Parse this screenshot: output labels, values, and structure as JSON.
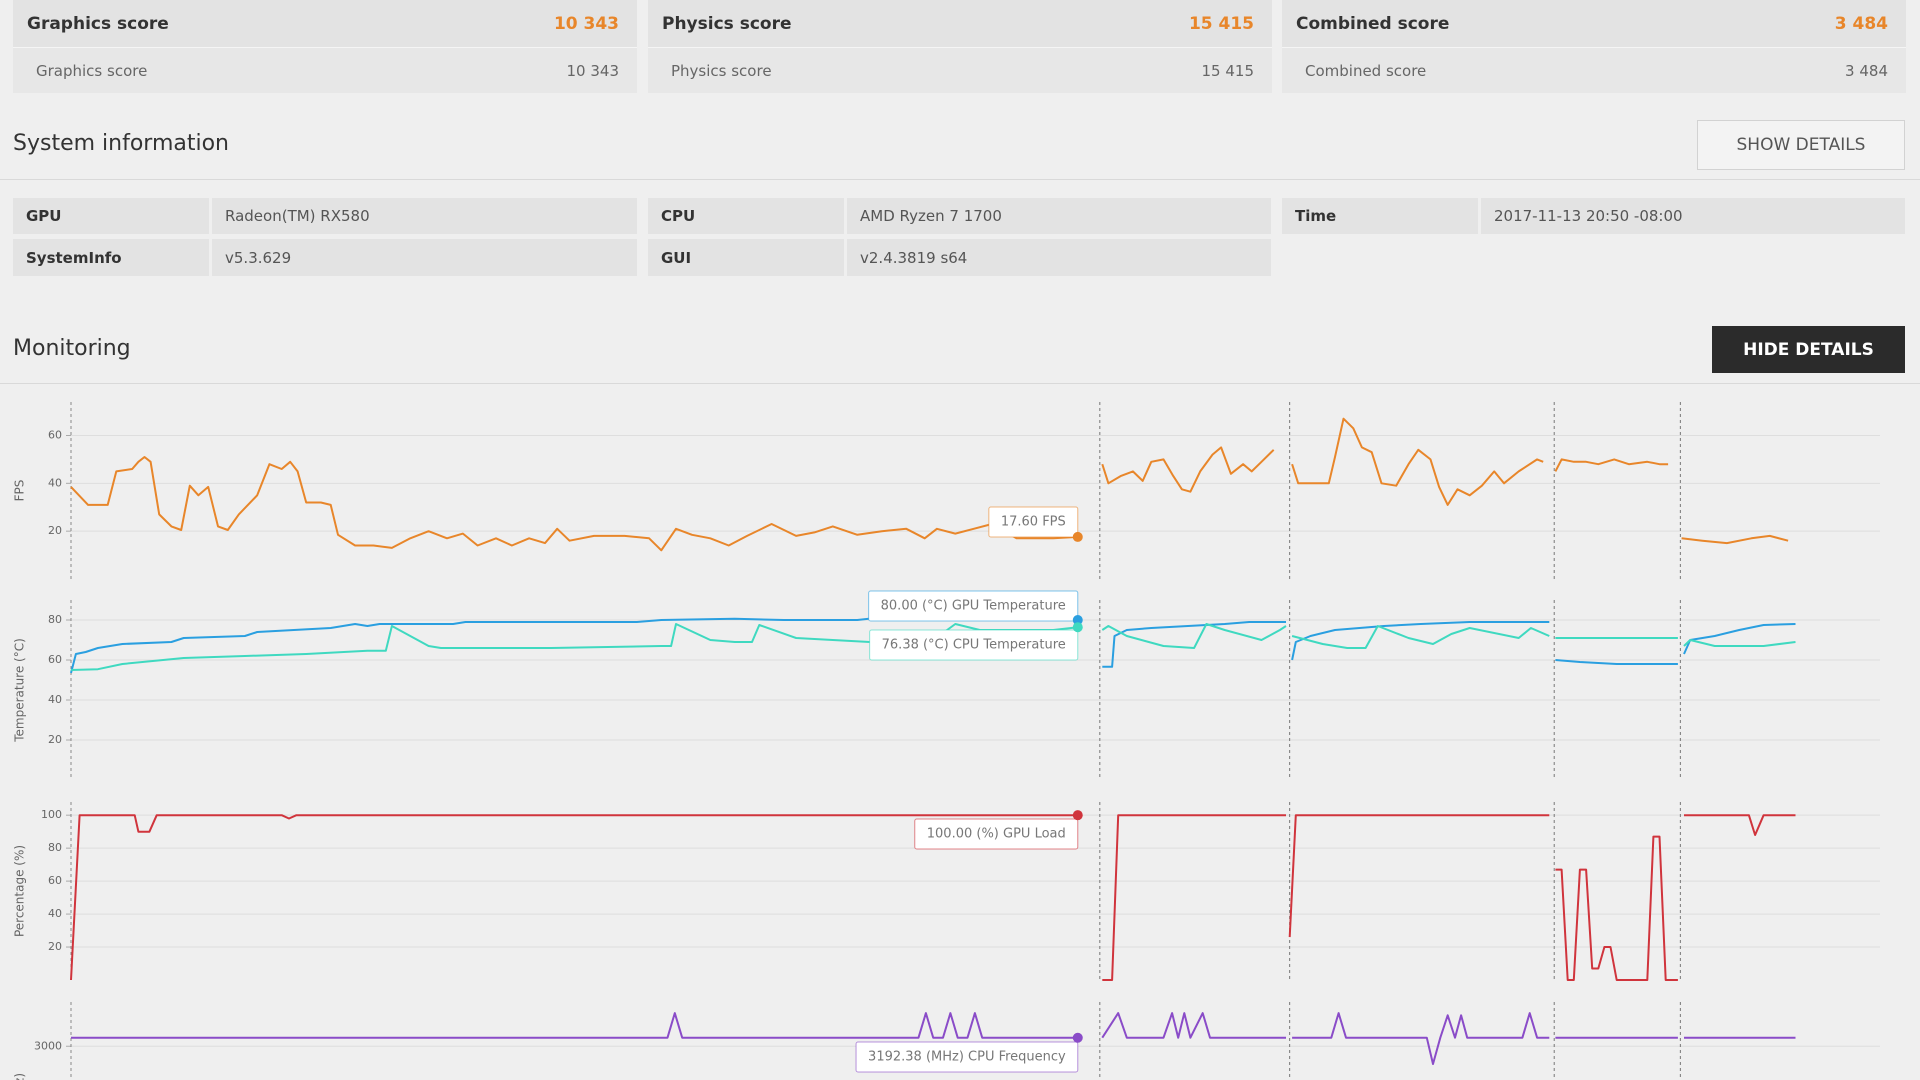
{
  "scores": [
    {
      "title": "Graphics score",
      "value": "10 343",
      "detail_label": "Graphics score",
      "detail_value": "10 343"
    },
    {
      "title": "Physics score",
      "value": "15 415",
      "detail_label": "Physics score",
      "detail_value": "15 415"
    },
    {
      "title": "Combined score",
      "value": "3 484",
      "detail_label": "Combined score",
      "detail_value": "3 484"
    }
  ],
  "system_information": {
    "title": "System information",
    "button": "SHOW DETAILS",
    "items": [
      {
        "label": "GPU",
        "value": "Radeon(TM) RX580"
      },
      {
        "label": "CPU",
        "value": "AMD Ryzen 7 1700"
      },
      {
        "label": "Time",
        "value": "2017-11-13 20:50 -08:00"
      },
      {
        "label": "SystemInfo",
        "value": "v5.3.629"
      },
      {
        "label": "GUI",
        "value": "v2.4.3819 s64"
      }
    ]
  },
  "monitoring": {
    "title": "Monitoring",
    "button": "HIDE DETAILS"
  },
  "chart_data": [
    {
      "type": "line",
      "y_label": "FPS",
      "xlim": [
        0,
        1477
      ],
      "ylim": [
        0,
        74
      ],
      "yticks": [
        20,
        40,
        60
      ],
      "grid": true,
      "dividers": [
        840,
        995,
        1211,
        1314
      ],
      "series": [
        {
          "color": "#e8862a",
          "tooltip": "17.60 FPS",
          "x": [
            0,
            14,
            30,
            37,
            50,
            55,
            60,
            65,
            72,
            82,
            90,
            97,
            104,
            112,
            120,
            128,
            137,
            152,
            162,
            172,
            179,
            185,
            192,
            204,
            212,
            218,
            232,
            247,
            262,
            277,
            292,
            307,
            320,
            332,
            347,
            360,
            374,
            387,
            397,
            407,
            427,
            452,
            472,
            482,
            494,
            507,
            522,
            537,
            552,
            572,
            592,
            607,
            622,
            642,
            662,
            682,
            697,
            707,
            722,
            737,
            752,
            772,
            802,
            822,
            null,
            842,
            847,
            857,
            867,
            875,
            882,
            892,
            900,
            907,
            914,
            922,
            932,
            939,
            947,
            957,
            964,
            972,
            982,
            null,
            997,
            1002,
            1012,
            1027,
            1032,
            1039,
            1047,
            1054,
            1062,
            1070,
            1082,
            1092,
            1100,
            1110,
            1117,
            1124,
            1132,
            1142,
            1152,
            1162,
            1170,
            1182,
            1197,
            1202,
            null,
            1212,
            1217,
            1227,
            1237,
            1247,
            1260,
            1272,
            1287,
            1297,
            1304,
            null,
            1315,
            1332,
            1352,
            1372,
            1387,
            1402
          ],
          "values": [
            38.5,
            31,
            31,
            45,
            46,
            49,
            51,
            49,
            27,
            22,
            20.5,
            39,
            35,
            38.5,
            22,
            20.5,
            27,
            35,
            48,
            46,
            49,
            45,
            32,
            32,
            31,
            18.5,
            14,
            14,
            13,
            17,
            20,
            17,
            19,
            14,
            17,
            14,
            17,
            15,
            21,
            16,
            18,
            18,
            17,
            12,
            21,
            18.5,
            17,
            14,
            18,
            23,
            18,
            19.5,
            22,
            18.5,
            20,
            21,
            17,
            21,
            19,
            21,
            23,
            17,
            17,
            17.6,
            null,
            48,
            40,
            43,
            45,
            41,
            49,
            50,
            43,
            37.5,
            36.5,
            45,
            52,
            55,
            44,
            48,
            45,
            49,
            54,
            null,
            48,
            40,
            40,
            40,
            51,
            67,
            63,
            55,
            53,
            40,
            39,
            48,
            54,
            50,
            38.5,
            31,
            37.5,
            35,
            39,
            45,
            40,
            45,
            50,
            49,
            null,
            45,
            50,
            49,
            49,
            48,
            50,
            48,
            49,
            48,
            48,
            null,
            17,
            16,
            15,
            17,
            18,
            16
          ]
        }
      ]
    },
    {
      "type": "line",
      "y_label": "Temperature (°C)",
      "xlim": [
        0,
        1477
      ],
      "ylim": [
        0,
        90
      ],
      "yticks": [
        20,
        40,
        60,
        80
      ],
      "grid": true,
      "dividers": [
        840,
        995,
        1211,
        1314
      ],
      "series": [
        {
          "color": "#2a9fe0",
          "tooltip": "80.00 (°C) GPU Temperature",
          "x": [
            0,
            4,
            12,
            22,
            42,
            82,
            92,
            142,
            152,
            182,
            212,
            222,
            232,
            242,
            252,
            312,
            322,
            362,
            442,
            462,
            482,
            542,
            582,
            642,
            657,
            822,
            null,
            842,
            850,
            852,
            862,
            882,
            912,
            942,
            962,
            992,
            null,
            997,
            1000,
            1012,
            1032,
            1072,
            1102,
            1142,
            1172,
            1207,
            null,
            1212,
            1232,
            1262,
            1312,
            null,
            1317,
            1322,
            1342,
            1362,
            1382,
            1408
          ],
          "values": [
            53.5,
            63,
            64,
            66,
            68,
            69,
            71,
            72,
            74,
            75,
            76,
            77,
            78,
            77,
            78,
            78,
            79,
            79,
            79,
            79,
            80,
            80.6,
            80,
            80,
            81,
            80,
            null,
            56.6,
            56.6,
            72,
            75,
            76,
            77,
            78,
            79,
            79,
            null,
            60,
            69,
            72,
            75,
            77,
            78,
            79,
            79,
            79,
            null,
            60,
            59,
            58,
            58,
            null,
            63,
            70,
            72,
            75,
            77.5,
            78
          ]
        },
        {
          "color": "#3fd9c0",
          "tooltip": "76.38 (°C) CPU Temperature",
          "x": [
            0,
            22,
            42,
            92,
            142,
            192,
            242,
            257,
            262,
            292,
            302,
            392,
            482,
            490,
            494,
            522,
            542,
            556,
            562,
            592,
            622,
            652,
            702,
            722,
            742,
            802,
            822,
            null,
            842,
            847,
            862,
            892,
            917,
            927,
            942,
            972,
            987,
            992,
            null,
            997,
            1022,
            1042,
            1057,
            1067,
            1092,
            1112,
            1127,
            1142,
            1182,
            1192,
            1207,
            null,
            1212,
            1312,
            null,
            1317,
            1322,
            1342,
            1382,
            1408
          ],
          "values": [
            55,
            55.4,
            58,
            61,
            62,
            63,
            64.6,
            64.6,
            77,
            67,
            66,
            66,
            67,
            67,
            78,
            70,
            69,
            69,
            77.5,
            71,
            70,
            69,
            69,
            78,
            75,
            75,
            76.4,
            null,
            75,
            77,
            72,
            67,
            66,
            78,
            75,
            70,
            75,
            77,
            null,
            72,
            68,
            66,
            66,
            77,
            71,
            68,
            73,
            76,
            71,
            76,
            72,
            null,
            71,
            71,
            null,
            67,
            70,
            67,
            67,
            69
          ]
        }
      ]
    },
    {
      "type": "line",
      "y_label": "Percentage (%)",
      "xlim": [
        0,
        1477
      ],
      "ylim": [
        0,
        108
      ],
      "yticks": [
        20,
        40,
        60,
        80,
        100
      ],
      "grid": true,
      "dividers": [
        840,
        995,
        1211,
        1314
      ],
      "series": [
        {
          "color": "#d0343c",
          "tooltip": "100.00 (%) GPU Load",
          "x": [
            0,
            7,
            52,
            55,
            64,
            70,
            172,
            178,
            184,
            822,
            null,
            842,
            850,
            855,
            992,
            null,
            995,
            1000,
            1207,
            null,
            1212,
            1217,
            1222,
            1227,
            1232,
            1237,
            1242,
            1247,
            1252,
            1257,
            1262,
            1287,
            1292,
            1297,
            1302,
            1312,
            null,
            1317,
            1370,
            1375,
            1382,
            1408
          ],
          "values": [
            0,
            100,
            100,
            90,
            90,
            100,
            100,
            98,
            100,
            100,
            null,
            0,
            0,
            100,
            100,
            null,
            26,
            100,
            100,
            null,
            67,
            67,
            0,
            0,
            67,
            67,
            7,
            7,
            20,
            20,
            0,
            0,
            87,
            87,
            0,
            0,
            null,
            100,
            100,
            88,
            100,
            100
          ]
        }
      ]
    },
    {
      "type": "line",
      "y_label": "(MHz)",
      "xlim": [
        0,
        1477
      ],
      "ylim": [
        0,
        4000
      ],
      "yticks": [
        3000
      ],
      "grid": true,
      "dividers": [
        840,
        995,
        1211,
        1314
      ],
      "series": [
        {
          "color": "#8a4cc8",
          "tooltip": "3192.38 (MHz) CPU Frequency",
          "x": [
            0,
            487,
            493,
            499,
            692,
            698,
            704,
            712,
            718,
            724,
            732,
            738,
            744,
            822,
            null,
            842,
            855,
            862,
            892,
            899,
            904,
            909,
            914,
            924,
            930,
            992,
            null,
            997,
            1029,
            1035,
            1041,
            1107,
            1112,
            1118,
            1124,
            1130,
            1135,
            1140,
            1185,
            1191,
            1197,
            1207,
            null,
            1212,
            1312,
            null,
            1317,
            1408
          ],
          "values": [
            3192.38,
            3192.38,
            3750,
            3192.38,
            3192.38,
            3750,
            3192.38,
            3192.38,
            3750,
            3192.38,
            3192.38,
            3750,
            3192.38,
            3192.38,
            null,
            3192.38,
            3750,
            3192.38,
            3192.38,
            3750,
            3192.38,
            3750,
            3192.38,
            3750,
            3192.38,
            3192.38,
            null,
            3192.38,
            3192.38,
            3750,
            3192.38,
            3192.38,
            2600,
            3192.38,
            3700,
            3192.38,
            3700,
            3192.38,
            3192.38,
            3750,
            3192.38,
            3192.38,
            null,
            3192.38,
            3192.38,
            null,
            3192.38,
            3192.38
          ]
        }
      ]
    }
  ]
}
